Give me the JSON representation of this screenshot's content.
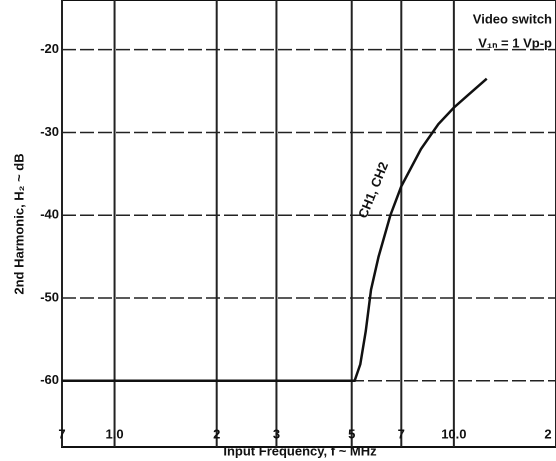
{
  "chart_data": {
    "type": "line",
    "y_label": "2nd Harmonic, H₂ ~ dB",
    "x_label": "Input Frequency, f ~ MHz",
    "annotations": [
      "Video switch",
      "V₁ₙ = 1 Vp-p"
    ],
    "log_x": true,
    "grid": true,
    "xlim": [
      0.7,
      20
    ],
    "ylim": [
      -68,
      -14
    ],
    "xticks": [
      {
        "value": 0.7,
        "label": "7"
      },
      {
        "value": 1,
        "label": "1.0"
      },
      2,
      3,
      5,
      7,
      {
        "value": 10,
        "label": "10.0"
      },
      {
        "value": 20,
        "label": "2"
      }
    ],
    "yticks": [
      {
        "value": -20,
        "label": "-20"
      },
      {
        "value": -30,
        "label": "-30"
      },
      {
        "value": -40,
        "label": "-40"
      },
      {
        "value": -50,
        "label": "-50"
      },
      {
        "value": -60,
        "label": "-60"
      }
    ],
    "series": [
      {
        "name": "CH1, CH2",
        "color": "#111111",
        "x": [
          0.7,
          2,
          4,
          5.1,
          5.3,
          5.5,
          5.7,
          6,
          6.5,
          7,
          8,
          9,
          10,
          11,
          12.5
        ],
        "values": [
          -60,
          -60,
          -60,
          -60,
          -58,
          -54,
          -49,
          -45,
          -40,
          -36.5,
          -32,
          -29,
          -27,
          -25.5,
          -23.5
        ]
      }
    ]
  }
}
